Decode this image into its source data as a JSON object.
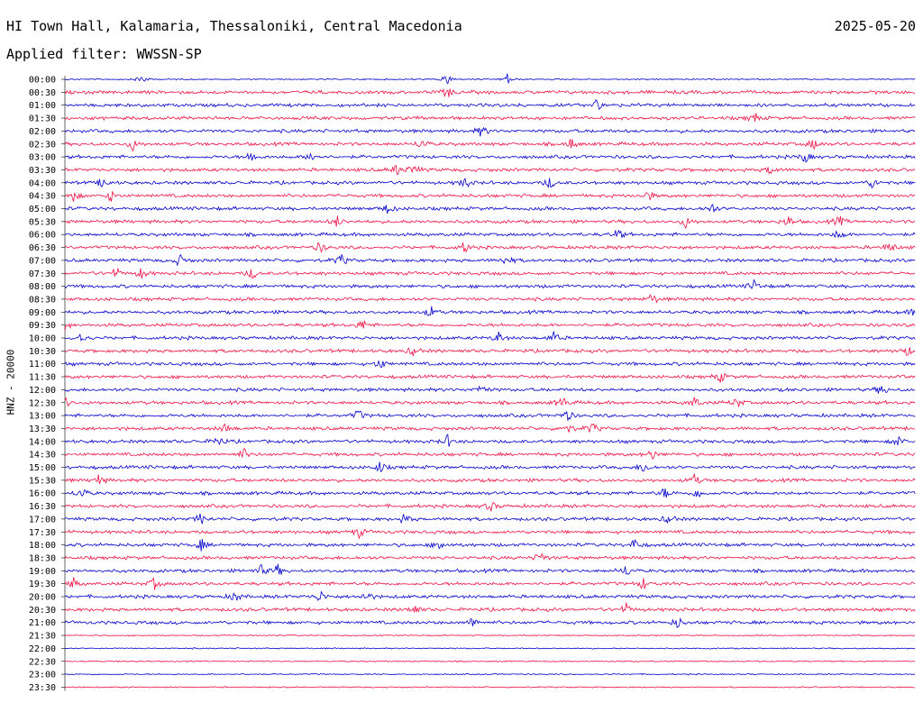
{
  "header": {
    "station": "HI Town Hall, Kalamaria, Thessaloniki, Central Macedonia",
    "date": "2025-05-20",
    "filter": "Applied filter: WWSSN-SP"
  },
  "chart_data": {
    "type": "line",
    "ylabel": "HNZ - 20000",
    "trace_colors": [
      "#0000cc",
      "#ee1144"
    ],
    "rows": [
      {
        "label": "00:00",
        "events": [
          0.09,
          0.45,
          0.52
        ]
      },
      {
        "label": "00:30",
        "events": [
          0.45
        ]
      },
      {
        "label": "01:00",
        "events": [
          0.625
        ]
      },
      {
        "label": "01:30",
        "events": [
          0.81
        ]
      },
      {
        "label": "02:00",
        "events": [
          0.49
        ]
      },
      {
        "label": "02:30",
        "events": [
          0.08,
          0.42,
          0.595,
          0.88
        ]
      },
      {
        "label": "03:00",
        "events": [
          0.22,
          0.29,
          0.87
        ]
      },
      {
        "label": "03:30",
        "events": [
          0.39,
          0.41,
          0.83
        ]
      },
      {
        "label": "04:00",
        "events": [
          0.045,
          0.47,
          0.57,
          0.95
        ]
      },
      {
        "label": "04:30",
        "events": [
          0.01,
          0.055,
          0.685
        ]
      },
      {
        "label": "05:00",
        "events": [
          0.38,
          0.76
        ]
      },
      {
        "label": "05:30",
        "events": [
          0.32,
          0.73,
          0.85,
          0.91
        ]
      },
      {
        "label": "06:00",
        "events": [
          0.65,
          0.91
        ]
      },
      {
        "label": "06:30",
        "events": [
          0.3,
          0.47,
          0.97
        ]
      },
      {
        "label": "07:00",
        "events": [
          0.135,
          0.325,
          0.52
        ]
      },
      {
        "label": "07:30",
        "events": [
          0.06,
          0.09,
          0.22
        ]
      },
      {
        "label": "08:00",
        "events": [
          0.81
        ]
      },
      {
        "label": "08:30",
        "events": [
          0.69
        ]
      },
      {
        "label": "09:00",
        "events": [
          0.43,
          1.0
        ]
      },
      {
        "label": "09:30",
        "events": [
          0.0,
          0.35
        ]
      },
      {
        "label": "10:00",
        "events": [
          0.02,
          0.51,
          0.575
        ]
      },
      {
        "label": "10:30",
        "events": [
          0.41,
          0.99
        ]
      },
      {
        "label": "11:00",
        "events": [
          0.37
        ]
      },
      {
        "label": "11:30",
        "events": [
          0.77
        ]
      },
      {
        "label": "12:00",
        "events": [
          0.49,
          0.96
        ]
      },
      {
        "label": "12:30",
        "events": [
          0.0,
          0.585,
          0.74,
          0.79
        ]
      },
      {
        "label": "13:00",
        "events": [
          0.345,
          0.59
        ]
      },
      {
        "label": "13:30",
        "events": [
          0.19,
          0.59,
          0.62
        ]
      },
      {
        "label": "14:00",
        "events": [
          0.18,
          0.45,
          0.98
        ]
      },
      {
        "label": "14:30",
        "events": [
          0.21,
          0.69
        ]
      },
      {
        "label": "15:00",
        "events": [
          0.37,
          0.68
        ]
      },
      {
        "label": "15:30",
        "events": [
          0.04,
          0.74
        ]
      },
      {
        "label": "16:00",
        "events": [
          0.02,
          0.705,
          0.745
        ]
      },
      {
        "label": "16:30",
        "events": [
          0.5
        ]
      },
      {
        "label": "17:00",
        "events": [
          0.16,
          0.4,
          0.71
        ]
      },
      {
        "label": "17:30",
        "events": [
          0.345
        ]
      },
      {
        "label": "18:00",
        "events": [
          0.16,
          0.44,
          0.67
        ]
      },
      {
        "label": "18:30",
        "events": [
          0.56
        ]
      },
      {
        "label": "19:00",
        "events": [
          0.23,
          0.25,
          0.66
        ]
      },
      {
        "label": "19:30",
        "events": [
          0.01,
          0.105,
          0.68
        ]
      },
      {
        "label": "20:00",
        "events": [
          0.2,
          0.3,
          0.355
        ]
      },
      {
        "label": "20:30",
        "events": [
          0.41,
          0.66
        ]
      },
      {
        "label": "21:00",
        "events": [
          0.48,
          0.72
        ]
      },
      {
        "label": "21:30",
        "events": []
      },
      {
        "label": "22:00",
        "events": []
      },
      {
        "label": "22:30",
        "events": []
      },
      {
        "label": "23:00",
        "events": []
      },
      {
        "label": "23:30",
        "events": []
      }
    ]
  }
}
